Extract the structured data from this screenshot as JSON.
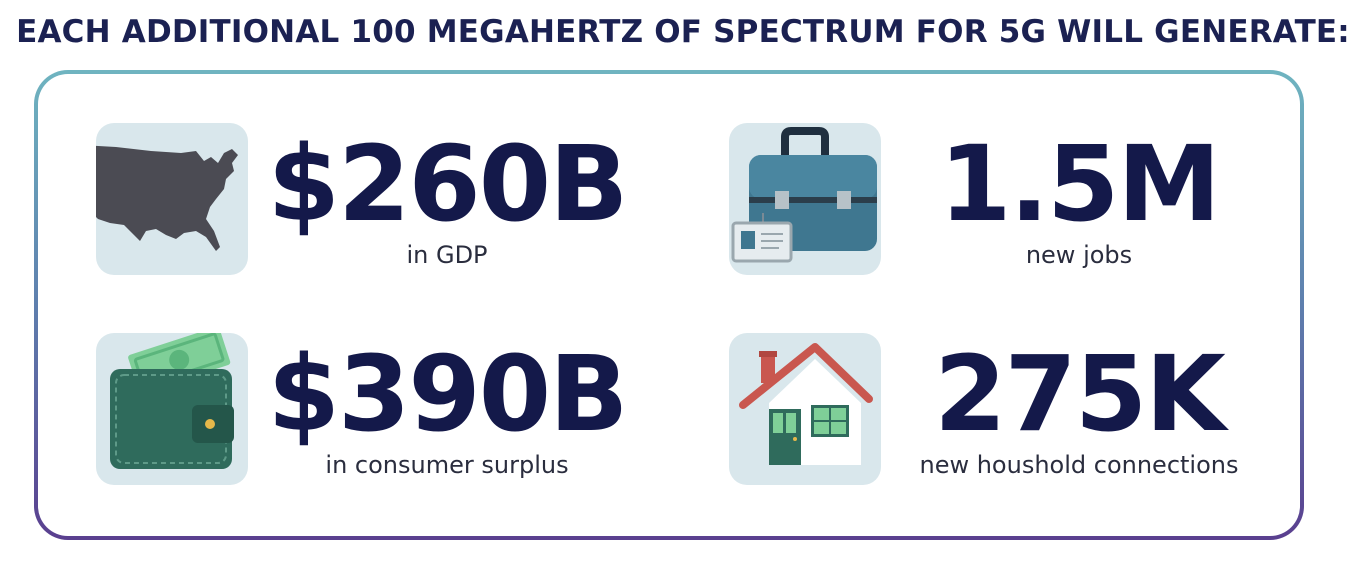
{
  "headline": "EACH ADDITIONAL 100 MEGAHERTZ OF SPECTRUM FOR 5G WILL GENERATE:",
  "stats": [
    {
      "value": "$260B",
      "label": "in GDP",
      "icon": "usa-map-icon"
    },
    {
      "value": "1.5M",
      "label": "new jobs",
      "icon": "briefcase-icon"
    },
    {
      "value": "$390B",
      "label": "in consumer surplus",
      "icon": "wallet-icon"
    },
    {
      "value": "275K",
      "label": "new houshold connections",
      "icon": "house-icon"
    }
  ],
  "colors": {
    "text_dark": "#14194a",
    "tile_bg": "#d9e7ec",
    "frame_top": "#6fb4c0",
    "frame_bottom": "#5a3f8f"
  }
}
